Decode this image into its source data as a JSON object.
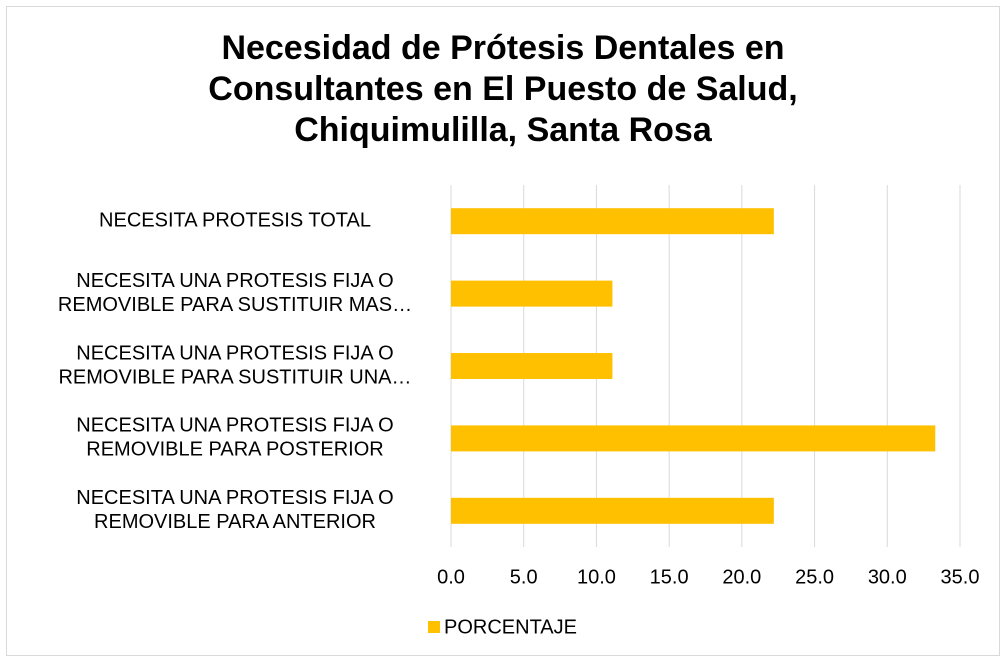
{
  "chart_data": {
    "type": "bar",
    "orientation": "horizontal",
    "title": "Necesidad de Prótesis Dentales en Consultantes en El Puesto de Salud, Chiquimulilla, Santa Rosa",
    "categories": [
      [
        "NECESITA PROTESIS TOTAL"
      ],
      [
        "NECESITA UNA PROTESIS FIJA O",
        "REMOVIBLE PARA SUSTITUIR MAS…"
      ],
      [
        "NECESITA UNA PROTESIS FIJA O",
        "REMOVIBLE PARA SUSTITUIR UNA…"
      ],
      [
        "NECESITA UNA PROTESIS FIJA O",
        "REMOVIBLE PARA POSTERIOR"
      ],
      [
        "NECESITA UNA PROTESIS FIJA O",
        "REMOVIBLE PARA ANTERIOR"
      ]
    ],
    "series": [
      {
        "name": "PORCENTAJE",
        "color": "#ffc000",
        "values": [
          22.2,
          11.1,
          11.1,
          33.3,
          22.2
        ]
      }
    ],
    "xlim": [
      0,
      35
    ],
    "xticks": [
      {
        "value": 0,
        "label": "0.0"
      },
      {
        "value": 5,
        "label": "5.0"
      },
      {
        "value": 10,
        "label": "10.0"
      },
      {
        "value": 15,
        "label": "15.0"
      },
      {
        "value": 20,
        "label": "20.0"
      },
      {
        "value": 25,
        "label": "25.0"
      },
      {
        "value": 30,
        "label": "30.0"
      },
      {
        "value": 35,
        "label": "35.0"
      }
    ],
    "grid": true,
    "legend": "bottom"
  }
}
